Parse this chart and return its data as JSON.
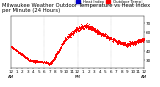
{
  "title": "Milwaukee Weather Outdoor Temperature vs Heat Index per Minute (24 Hours)",
  "bg_color": "#ffffff",
  "plot_bg_color": "#ffffff",
  "dot_color": "#ff0000",
  "legend_colors": [
    "#0000cc",
    "#ff0000"
  ],
  "legend_labels": [
    "Heat Index",
    "Outdoor Temp"
  ],
  "ylim_min": 22,
  "ylim_max": 78,
  "xlim_min": 0,
  "xlim_max": 1440,
  "vline_positions": [
    360,
    720,
    1080
  ],
  "title_fontsize": 3.8,
  "tick_fontsize": 3.0,
  "marker_size": 0.5
}
